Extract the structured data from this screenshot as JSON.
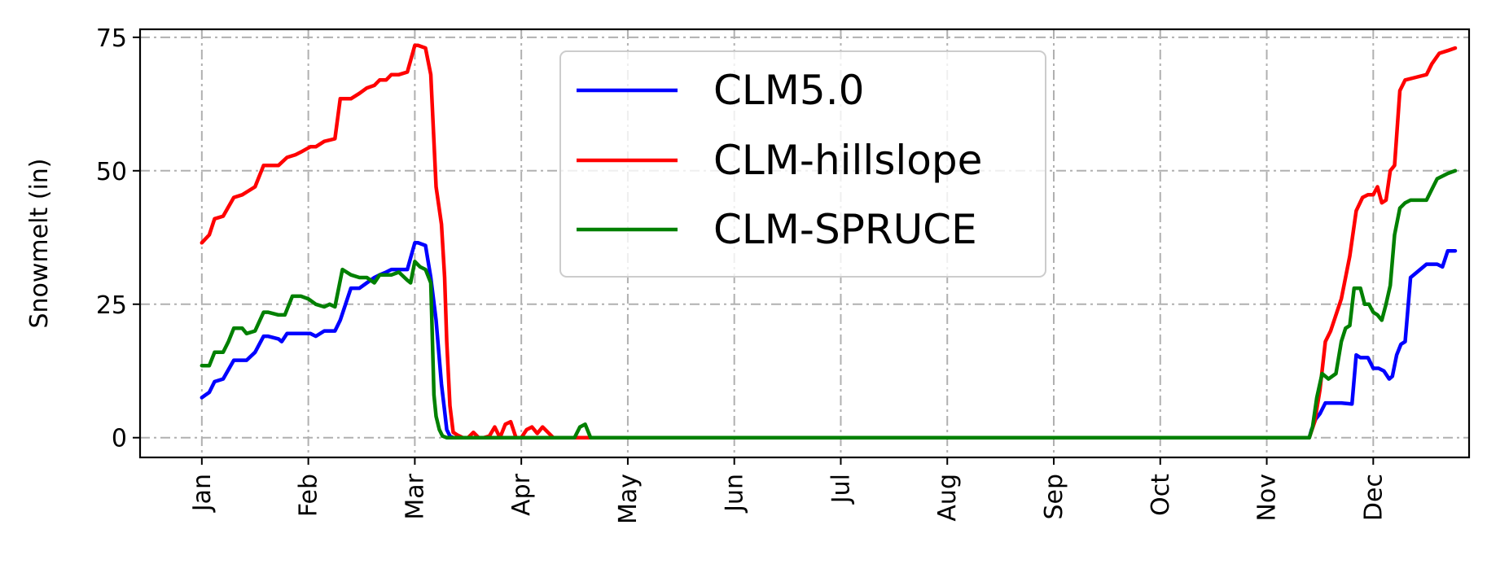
{
  "chart_data": {
    "type": "line",
    "title": "",
    "xlabel": "",
    "ylabel": "Snowmelt (in)",
    "xlim": [
      -0.58,
      11.9
    ],
    "ylim": [
      -3.7,
      76.5
    ],
    "yticks": [
      0,
      25,
      50,
      75
    ],
    "xticks": [
      0,
      1,
      2,
      3,
      4,
      5,
      6,
      7,
      8,
      9,
      10,
      11
    ],
    "xtick_labels": [
      "Jan",
      "Feb",
      "Mar",
      "Apr",
      "May",
      "Jun",
      "Jul",
      "Aug",
      "Sep",
      "Oct",
      "Nov",
      "Dec"
    ],
    "grid": true,
    "legend_position": "upper center",
    "series": [
      {
        "name": "CLM5.0",
        "color": "#0000ff",
        "x": [
          0.0,
          0.07,
          0.12,
          0.2,
          0.3,
          0.38,
          0.42,
          0.5,
          0.58,
          0.62,
          0.72,
          0.75,
          0.8,
          0.88,
          0.93,
          1.02,
          1.07,
          1.15,
          1.25,
          1.3,
          1.4,
          1.48,
          1.55,
          1.62,
          1.67,
          1.73,
          1.78,
          1.85,
          1.93,
          2.0,
          2.03,
          2.1,
          2.15,
          2.2,
          2.25,
          2.28,
          2.3,
          2.33,
          2.36,
          2.38,
          2.42,
          2.5,
          3.0,
          4.0,
          5.0,
          6.0,
          7.0,
          8.0,
          9.0,
          10.0,
          10.4,
          10.42,
          10.46,
          10.5,
          10.55,
          10.6,
          10.7,
          10.8,
          10.84,
          10.88,
          10.95,
          11.0,
          11.05,
          11.1,
          11.15,
          11.18,
          11.22,
          11.26,
          11.3,
          11.35,
          11.5,
          11.6,
          11.65,
          11.7,
          11.77
        ],
        "y": [
          7.5,
          8.5,
          10.5,
          11.0,
          14.5,
          14.5,
          14.5,
          16.0,
          19.0,
          19.0,
          18.5,
          18.0,
          19.5,
          19.5,
          19.5,
          19.5,
          19.0,
          20.0,
          20.0,
          22.0,
          28.0,
          28.0,
          29.0,
          30.0,
          30.5,
          31.0,
          31.5,
          31.5,
          31.5,
          36.5,
          36.5,
          36.0,
          30.0,
          22.0,
          10.0,
          5.0,
          1.5,
          0.3,
          0.0,
          0.0,
          0.0,
          0.0,
          0.0,
          0.0,
          0.0,
          0.0,
          0.0,
          0.0,
          0.0,
          0.0,
          0.0,
          1.5,
          3.5,
          4.5,
          6.5,
          6.5,
          6.5,
          6.3,
          15.5,
          15.0,
          15.0,
          13.0,
          13.0,
          12.5,
          11.0,
          11.5,
          15.5,
          17.5,
          18.0,
          30.0,
          32.5,
          32.5,
          32.0,
          35.0,
          35.0
        ]
      },
      {
        "name": "CLM-hillslope",
        "color": "#ff0000",
        "x": [
          0.0,
          0.07,
          0.12,
          0.2,
          0.3,
          0.38,
          0.42,
          0.5,
          0.58,
          0.62,
          0.72,
          0.8,
          0.88,
          0.93,
          1.02,
          1.07,
          1.15,
          1.25,
          1.3,
          1.4,
          1.48,
          1.55,
          1.62,
          1.67,
          1.73,
          1.78,
          1.85,
          1.93,
          2.0,
          2.03,
          2.1,
          2.15,
          2.2,
          2.25,
          2.28,
          2.3,
          2.33,
          2.36,
          2.4,
          2.45,
          2.5,
          2.55,
          2.6,
          2.65,
          2.7,
          2.75,
          2.8,
          2.85,
          2.9,
          2.95,
          3.0,
          3.05,
          3.1,
          3.15,
          3.2,
          3.3,
          4.0,
          5.0,
          6.0,
          7.0,
          8.0,
          9.0,
          10.0,
          10.4,
          10.45,
          10.5,
          10.55,
          10.6,
          10.7,
          10.78,
          10.84,
          10.9,
          10.95,
          11.0,
          11.04,
          11.08,
          11.12,
          11.16,
          11.2,
          11.25,
          11.3,
          11.4,
          11.5,
          11.55,
          11.62,
          11.7,
          11.77
        ],
        "y": [
          36.5,
          38.0,
          41.0,
          41.5,
          45.0,
          45.5,
          46.0,
          47.0,
          51.0,
          51.0,
          51.0,
          52.5,
          53.0,
          53.5,
          54.5,
          54.5,
          55.5,
          56.0,
          63.5,
          63.5,
          64.5,
          65.5,
          66.0,
          67.0,
          67.0,
          68.0,
          68.0,
          68.5,
          73.5,
          73.5,
          73.0,
          68.0,
          47.0,
          40.0,
          30.0,
          18.0,
          6.0,
          1.0,
          0.5,
          0.0,
          0.0,
          1.0,
          0.0,
          0.0,
          0.3,
          2.0,
          0.0,
          2.5,
          3.0,
          0.0,
          0.0,
          1.5,
          2.0,
          0.8,
          2.0,
          0.0,
          0.0,
          0.0,
          0.0,
          0.0,
          0.0,
          0.0,
          0.0,
          0.0,
          3.0,
          9.0,
          18.0,
          20.0,
          26.0,
          34.0,
          42.5,
          45.0,
          45.5,
          45.5,
          47.0,
          44.0,
          44.5,
          50.0,
          51.0,
          65.0,
          67.0,
          67.5,
          68.0,
          70.0,
          72.0,
          72.5,
          73.0
        ]
      },
      {
        "name": "CLM-SPRUCE",
        "color": "#008000",
        "x": [
          0.0,
          0.07,
          0.12,
          0.2,
          0.25,
          0.3,
          0.38,
          0.42,
          0.5,
          0.58,
          0.62,
          0.72,
          0.78,
          0.85,
          0.93,
          1.0,
          1.07,
          1.15,
          1.2,
          1.25,
          1.32,
          1.4,
          1.48,
          1.55,
          1.62,
          1.67,
          1.73,
          1.78,
          1.85,
          1.93,
          1.96,
          2.0,
          2.05,
          2.1,
          2.15,
          2.18,
          2.2,
          2.23,
          2.26,
          2.3,
          2.35,
          3.0,
          3.5,
          3.55,
          3.6,
          3.65,
          4.0,
          5.0,
          6.0,
          7.0,
          8.0,
          9.0,
          10.0,
          10.4,
          10.43,
          10.47,
          10.52,
          10.58,
          10.65,
          10.7,
          10.74,
          10.78,
          10.82,
          10.88,
          10.92,
          10.96,
          11.0,
          11.04,
          11.08,
          11.12,
          11.16,
          11.2,
          11.25,
          11.3,
          11.35,
          11.5,
          11.55,
          11.6,
          11.7,
          11.77
        ],
        "y": [
          13.5,
          13.5,
          16.0,
          16.0,
          18.0,
          20.5,
          20.5,
          19.5,
          20.0,
          23.5,
          23.5,
          23.0,
          23.0,
          26.5,
          26.5,
          26.0,
          25.0,
          24.5,
          25.0,
          24.5,
          31.5,
          30.5,
          30.0,
          30.0,
          29.0,
          30.5,
          30.5,
          30.5,
          31.0,
          29.5,
          29.0,
          33.0,
          32.0,
          31.5,
          29.0,
          8.0,
          4.0,
          1.5,
          0.3,
          0.0,
          0.0,
          0.0,
          0.0,
          2.0,
          2.5,
          0.0,
          0.0,
          0.0,
          0.0,
          0.0,
          0.0,
          0.0,
          0.0,
          0.0,
          2.0,
          7.5,
          12.0,
          11.0,
          12.0,
          18.0,
          20.5,
          21.0,
          28.0,
          28.0,
          25.0,
          25.0,
          23.5,
          23.0,
          22.0,
          25.0,
          28.5,
          38.0,
          43.0,
          44.0,
          44.5,
          44.5,
          46.5,
          48.5,
          49.5,
          50.0
        ]
      }
    ]
  }
}
